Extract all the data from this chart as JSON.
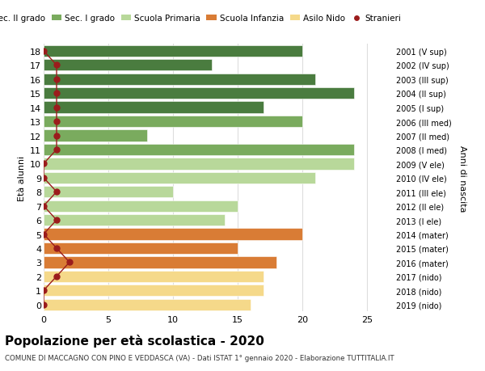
{
  "ages": [
    18,
    17,
    16,
    15,
    14,
    13,
    12,
    11,
    10,
    9,
    8,
    7,
    6,
    5,
    4,
    3,
    2,
    1,
    0
  ],
  "right_labels": [
    "2001 (V sup)",
    "2002 (IV sup)",
    "2003 (III sup)",
    "2004 (II sup)",
    "2005 (I sup)",
    "2006 (III med)",
    "2007 (II med)",
    "2008 (I med)",
    "2009 (V ele)",
    "2010 (IV ele)",
    "2011 (III ele)",
    "2012 (II ele)",
    "2013 (I ele)",
    "2014 (mater)",
    "2015 (mater)",
    "2016 (mater)",
    "2017 (nido)",
    "2018 (nido)",
    "2019 (nido)"
  ],
  "bar_values": [
    20,
    13,
    21,
    24,
    17,
    20,
    8,
    24,
    24,
    21,
    10,
    15,
    14,
    20,
    15,
    18,
    17,
    17,
    16
  ],
  "bar_colors": [
    "#4a7c3f",
    "#4a7c3f",
    "#4a7c3f",
    "#4a7c3f",
    "#4a7c3f",
    "#7aab5e",
    "#7aab5e",
    "#7aab5e",
    "#b8d89a",
    "#b8d89a",
    "#b8d89a",
    "#b8d89a",
    "#b8d89a",
    "#d97c35",
    "#d97c35",
    "#d97c35",
    "#f5d98a",
    "#f5d98a",
    "#f5d98a"
  ],
  "stranieri_values": [
    0,
    1,
    1,
    1,
    1,
    1,
    1,
    1,
    0,
    0,
    1,
    0,
    1,
    0,
    1,
    2,
    1,
    0,
    0
  ],
  "stranieri_color": "#9b1c1c",
  "legend_labels": [
    "Sec. II grado",
    "Sec. I grado",
    "Scuola Primaria",
    "Scuola Infanzia",
    "Asilo Nido",
    "Stranieri"
  ],
  "legend_colors": [
    "#4a7c3f",
    "#7aab5e",
    "#b8d89a",
    "#d97c35",
    "#f5d98a",
    "#9b1c1c"
  ],
  "ylabel_left": "Età alunni",
  "ylabel_right": "Anni di nascita",
  "xlim": [
    0,
    27
  ],
  "xticks": [
    0,
    5,
    10,
    15,
    20,
    25
  ],
  "title": "Popolazione per età scolastica - 2020",
  "subtitle": "COMUNE DI MACCAGNO CON PINO E VEDDASCA (VA) - Dati ISTAT 1° gennaio 2020 - Elaborazione TUTTITALIA.IT",
  "grid_color": "#dddddd",
  "bar_height": 0.82,
  "bg_color": "#ffffff"
}
